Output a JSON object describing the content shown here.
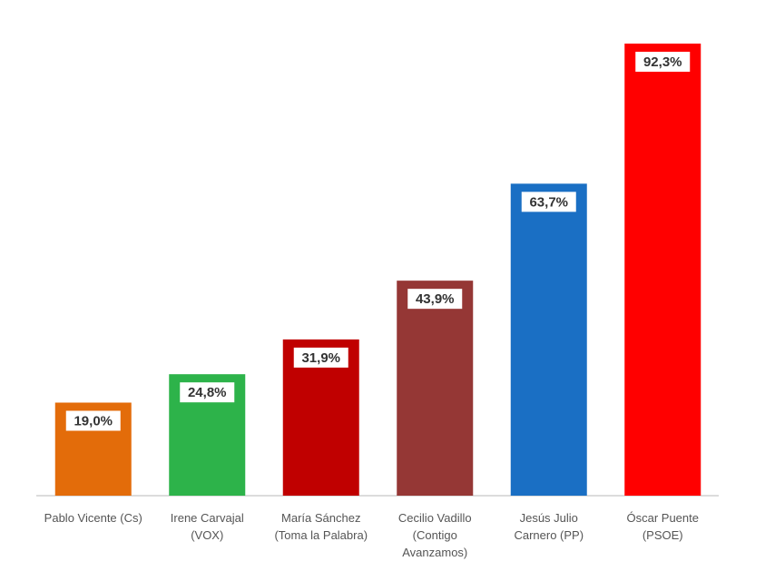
{
  "chart_data": {
    "type": "bar",
    "categories": [
      "Pablo Vicente (Cs)",
      "Irene Carvajal\n(VOX)",
      "María Sánchez\n(Toma la Palabra)",
      "Cecilio Vadillo\n(Contigo\nAvanzamos)",
      "Jesús Julio\nCarnero (PP)",
      "Óscar Puente\n(PSOE)"
    ],
    "values": [
      19.0,
      24.8,
      31.9,
      43.9,
      63.7,
      92.3
    ],
    "value_labels": [
      "19,0%",
      "24,8%",
      "31,9%",
      "43,9%",
      "63,7%",
      "92,3%"
    ],
    "colors": [
      "#e36c0a",
      "#2db34a",
      "#c00000",
      "#953735",
      "#1a6fc4",
      "#ff0000"
    ]
  }
}
